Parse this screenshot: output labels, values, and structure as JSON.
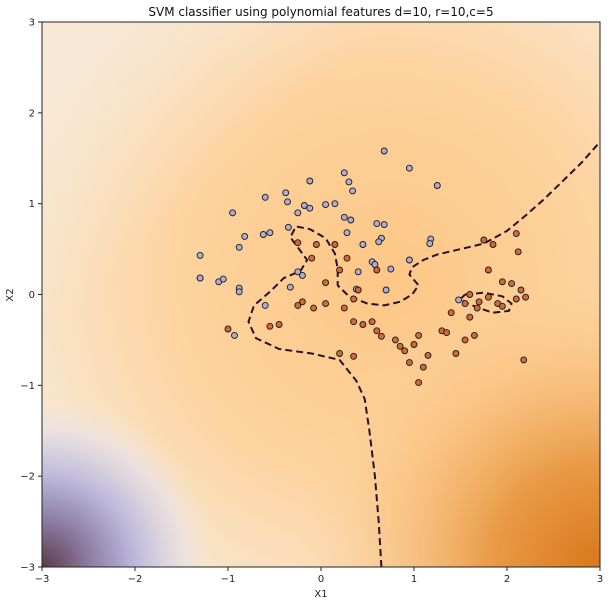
{
  "chart_data": {
    "type": "scatter",
    "title": "SVM classifier using polynomial features d=10, r=10,c=5",
    "xlabel": "X1",
    "ylabel": "X2",
    "xlim": [
      -3,
      3
    ],
    "ylim": [
      -3,
      3
    ],
    "xticks": [
      -3,
      -2,
      -1,
      0,
      1,
      2,
      3
    ],
    "yticks": [
      -3,
      -2,
      -1,
      0,
      1,
      2,
      3
    ],
    "xtick_labels": [
      "−3",
      "−2",
      "−1",
      "0",
      "1",
      "2",
      "3"
    ],
    "ytick_labels": [
      "−3",
      "−2",
      "−1",
      "0",
      "1",
      "2",
      "3"
    ],
    "grid": false,
    "background": "decision-function contour fill (PuOr colormap)",
    "colors": {
      "class_a": "#b2abd2",
      "class_b": "#d2693c",
      "boundary": "#2a0f2a",
      "background_light": "#f7e6cf",
      "background_mid": "#fdcf96",
      "background_dark": "#e08a2c",
      "purple_region": "#b8b4d8"
    },
    "series": [
      {
        "class": "purple",
        "points": [
          [
            -1.3,
            0.43
          ],
          [
            -1.3,
            0.18
          ],
          [
            -1.1,
            0.14
          ],
          [
            -1.05,
            0.17
          ],
          [
            -0.95,
            0.9
          ],
          [
            -0.88,
            0.52
          ],
          [
            -0.88,
            0.07
          ],
          [
            -0.88,
            0.03
          ],
          [
            -0.82,
            0.64
          ],
          [
            -0.62,
            0.66
          ],
          [
            -0.55,
            0.68
          ],
          [
            -0.6,
            1.07
          ],
          [
            -0.38,
            1.12
          ],
          [
            -0.36,
            1.02
          ],
          [
            -0.35,
            0.74
          ],
          [
            -0.25,
            0.9
          ],
          [
            -0.12,
            1.25
          ],
          [
            -0.18,
            0.98
          ],
          [
            -0.12,
            0.95
          ],
          [
            0.05,
            0.99
          ],
          [
            0.15,
            1.0
          ],
          [
            0.25,
            1.34
          ],
          [
            0.3,
            1.24
          ],
          [
            0.34,
            1.14
          ],
          [
            0.25,
            0.85
          ],
          [
            0.32,
            0.82
          ],
          [
            0.28,
            0.68
          ],
          [
            0.45,
            0.55
          ],
          [
            0.6,
            0.78
          ],
          [
            0.68,
            0.77
          ],
          [
            0.65,
            0.62
          ],
          [
            0.62,
            0.58
          ],
          [
            0.55,
            0.36
          ],
          [
            0.58,
            0.33
          ],
          [
            0.75,
            0.28
          ],
          [
            0.7,
            0.05
          ],
          [
            0.95,
            1.39
          ],
          [
            1.18,
            0.61
          ],
          [
            1.17,
            0.56
          ],
          [
            1.25,
            1.2
          ],
          [
            0.68,
            1.58
          ],
          [
            1.48,
            -0.06
          ],
          [
            -0.33,
            0.08
          ],
          [
            -0.25,
            0.25
          ],
          [
            -0.2,
            0.21
          ],
          [
            -0.6,
            -0.12
          ],
          [
            -1.3,
            0.18
          ],
          [
            -0.93,
            -0.45
          ],
          [
            0.95,
            0.38
          ],
          [
            0.4,
            0.25
          ],
          [
            0.38,
            0.06
          ]
        ]
      },
      {
        "class": "orange",
        "points": [
          [
            -0.25,
            0.57
          ],
          [
            -0.05,
            0.55
          ],
          [
            -0.1,
            0.4
          ],
          [
            0.15,
            0.55
          ],
          [
            0.28,
            0.4
          ],
          [
            0.2,
            0.27
          ],
          [
            0.4,
            0.05
          ],
          [
            0.05,
            0.13
          ],
          [
            0.05,
            -0.1
          ],
          [
            -0.08,
            -0.15
          ],
          [
            -0.2,
            -0.08
          ],
          [
            -0.25,
            -0.12
          ],
          [
            -0.45,
            -0.33
          ],
          [
            -0.55,
            -0.35
          ],
          [
            -1.0,
            -0.38
          ],
          [
            0.25,
            -0.15
          ],
          [
            0.45,
            -0.33
          ],
          [
            0.6,
            -0.4
          ],
          [
            0.65,
            -0.46
          ],
          [
            0.8,
            -0.5
          ],
          [
            0.9,
            -0.62
          ],
          [
            0.95,
            -0.75
          ],
          [
            1.0,
            -0.55
          ],
          [
            1.05,
            -0.45
          ],
          [
            1.1,
            -0.8
          ],
          [
            1.15,
            -0.67
          ],
          [
            1.3,
            -0.4
          ],
          [
            1.35,
            -0.42
          ],
          [
            1.4,
            -0.2
          ],
          [
            1.45,
            -0.65
          ],
          [
            1.55,
            -0.5
          ],
          [
            1.6,
            -0.25
          ],
          [
            1.65,
            -0.45
          ],
          [
            1.75,
            0.6
          ],
          [
            1.85,
            0.55
          ],
          [
            1.9,
            -0.1
          ],
          [
            1.95,
            -0.13
          ],
          [
            2.05,
            0.12
          ],
          [
            2.1,
            -0.05
          ],
          [
            2.15,
            0.05
          ],
          [
            2.18,
            -0.72
          ],
          [
            2.2,
            -0.03
          ],
          [
            1.6,
            0.0
          ],
          [
            1.8,
            -0.03
          ],
          [
            1.7,
            -0.08
          ],
          [
            1.8,
            0.27
          ],
          [
            2.1,
            0.67
          ],
          [
            2.12,
            0.47
          ],
          [
            1.05,
            -0.97
          ],
          [
            0.85,
            -0.57
          ],
          [
            0.2,
            -0.65
          ],
          [
            0.35,
            -0.68
          ],
          [
            0.35,
            -0.3
          ],
          [
            0.6,
            0.27
          ],
          [
            0.35,
            -0.05
          ],
          [
            1.95,
            0.14
          ],
          [
            1.55,
            -0.1
          ],
          [
            1.68,
            -0.15
          ],
          [
            0.55,
            -0.3
          ]
        ]
      }
    ],
    "decision_boundary": [
      [
        [
          0.65,
          -3.0
        ],
        [
          0.62,
          -2.5
        ],
        [
          0.58,
          -2.0
        ],
        [
          0.52,
          -1.5
        ],
        [
          0.47,
          -1.15
        ],
        [
          0.38,
          -0.95
        ],
        [
          0.2,
          -0.72
        ],
        [
          -0.1,
          -0.65
        ],
        [
          -0.45,
          -0.6
        ],
        [
          -0.7,
          -0.48
        ],
        [
          -0.78,
          -0.3
        ],
        [
          -0.72,
          -0.12
        ],
        [
          -0.55,
          0.03
        ],
        [
          -0.4,
          0.18
        ],
        [
          -0.22,
          0.26
        ],
        [
          -0.15,
          0.38
        ],
        [
          -0.25,
          0.52
        ],
        [
          -0.33,
          0.63
        ],
        [
          -0.27,
          0.75
        ],
        [
          -0.12,
          0.72
        ],
        [
          0.05,
          0.62
        ],
        [
          0.15,
          0.45
        ],
        [
          0.18,
          0.28
        ],
        [
          0.18,
          0.1
        ],
        [
          0.3,
          -0.02
        ],
        [
          0.5,
          -0.1
        ],
        [
          0.68,
          -0.12
        ],
        [
          0.85,
          -0.08
        ],
        [
          0.98,
          0.0
        ],
        [
          1.05,
          0.1
        ],
        [
          0.95,
          0.22
        ],
        [
          0.98,
          0.3
        ],
        [
          1.1,
          0.38
        ],
        [
          1.25,
          0.44
        ],
        [
          1.5,
          0.5
        ],
        [
          1.75,
          0.56
        ],
        [
          2.0,
          0.7
        ],
        [
          2.2,
          0.87
        ],
        [
          2.4,
          1.05
        ],
        [
          2.6,
          1.25
        ],
        [
          2.8,
          1.45
        ],
        [
          3.0,
          1.68
        ]
      ],
      [
        [
          1.55,
          0.0
        ],
        [
          1.75,
          0.02
        ],
        [
          1.95,
          -0.02
        ],
        [
          2.05,
          -0.1
        ],
        [
          2.02,
          -0.18
        ],
        [
          1.85,
          -0.2
        ],
        [
          1.7,
          -0.15
        ],
        [
          1.58,
          -0.1
        ],
        [
          1.5,
          -0.05
        ],
        [
          1.55,
          0.0
        ]
      ]
    ]
  }
}
